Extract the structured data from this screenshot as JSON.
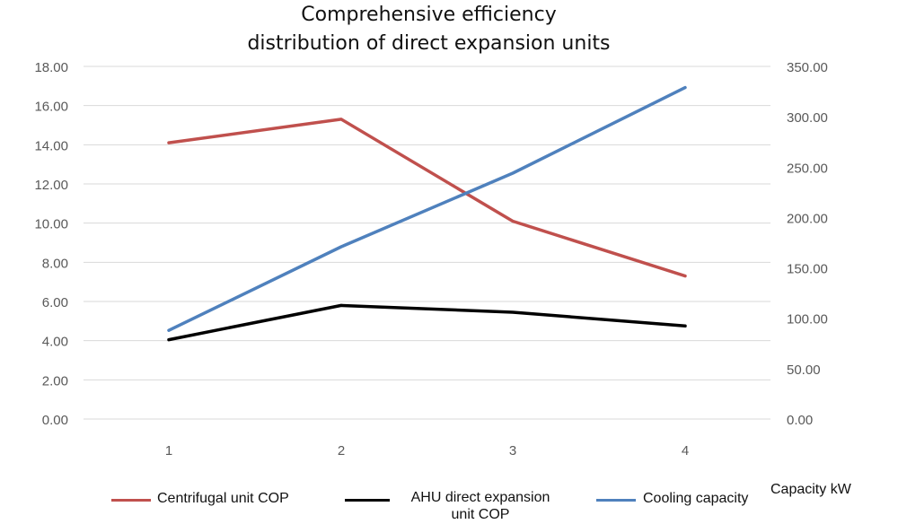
{
  "chart_data": {
    "type": "line",
    "title_lines": [
      "Comprehensive efficiency",
      "distribution of direct expansion units"
    ],
    "x": [
      "1",
      "2",
      "3",
      "4"
    ],
    "y_left": {
      "ticks": [
        "0.00",
        "2.00",
        "4.00",
        "6.00",
        "8.00",
        "10.00",
        "12.00",
        "14.00",
        "16.00",
        "18.00"
      ],
      "ylim": [
        0,
        18
      ]
    },
    "y_right": {
      "ticks": [
        "0.00",
        "50.00",
        "100.00",
        "150.00",
        "200.00",
        "250.00",
        "300.00",
        "350.00"
      ],
      "ylim": [
        0,
        350
      ]
    },
    "right_axis_label": "Capacity  kW",
    "grid": true,
    "legend_position": "bottom",
    "series": [
      {
        "name": "Centrifugal unit COP",
        "axis": "left",
        "color": "#c0504d",
        "values": [
          14.1,
          15.3,
          10.1,
          7.3
        ]
      },
      {
        "name": "AHU direct expansion unit COP",
        "legend_lines": [
          "AHU direct expansion",
          "unit COP"
        ],
        "axis": "left",
        "color": "#000000",
        "values": [
          4.05,
          5.8,
          5.45,
          4.75
        ]
      },
      {
        "name": "Cooling capacity",
        "axis": "right",
        "color": "#4f81bd",
        "values": [
          88,
          171,
          244,
          329
        ]
      }
    ]
  }
}
